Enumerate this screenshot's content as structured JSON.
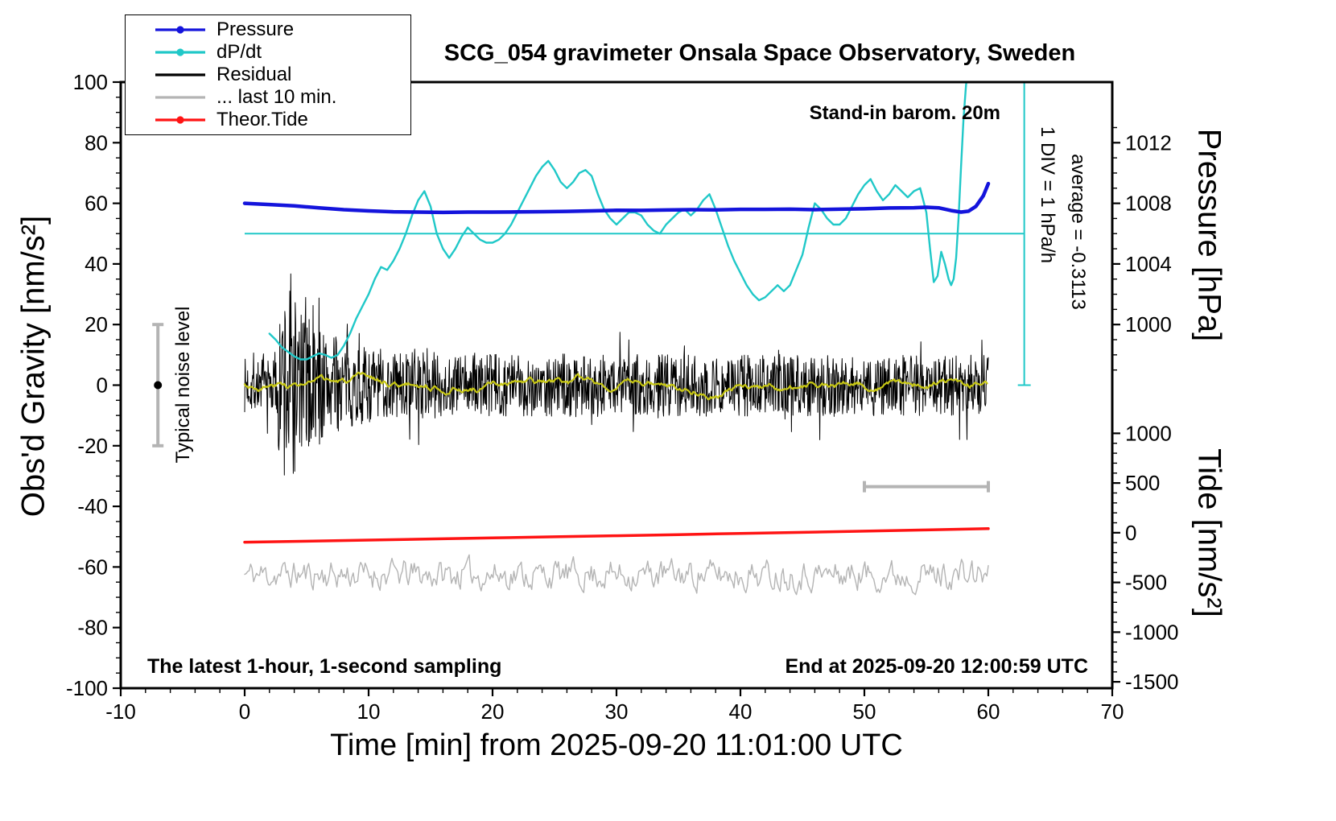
{
  "title": "SCG_054 gravimeter Onsala Space Observatory, Sweden",
  "annotations": {
    "barom": "Stand-in barom. 20m",
    "div_note": "1 DIV = 1 hPa/h",
    "average_note": "average = -0.3113",
    "noise_label": "Typical noise level",
    "sampling_note": "The latest 1-hour, 1-second sampling",
    "end_note": "End at 2025-09-20 12:00:59 UTC"
  },
  "legend": {
    "items": [
      {
        "label": "Pressure",
        "color": "#1414dc",
        "dot": true
      },
      {
        "label": "dP/dt",
        "color": "#20c8c8",
        "dot": true
      },
      {
        "label": "Residual",
        "color": "#000000",
        "dot": false
      },
      {
        "label": "... last 10 min.",
        "color": "#b4b4b4",
        "dot": false
      },
      {
        "label": "Theor.Tide",
        "color": "#ff1414",
        "dot": true
      }
    ]
  },
  "chart_data": {
    "type": "line",
    "axes": {
      "x": {
        "label": "Time [min] from 2025-09-20 11:01:00 UTC",
        "min": -10,
        "max": 70,
        "major_step": 10,
        "minor_step": 2
      },
      "gravity": {
        "label": "Obs'd Gravity [nm/s²]",
        "min": -100,
        "max": 100,
        "major_step": 20,
        "minor_step": 5
      },
      "pressure": {
        "label": "Pressure [hPa]",
        "ticks": [
          1012,
          1008,
          1004,
          1000
        ],
        "minor_step": 1,
        "minor_range": [
          997,
          1013
        ],
        "to_gravity": {
          "offset": 996,
          "scale": 5
        }
      },
      "tide": {
        "label": "Tide [nm/s²]",
        "ticks": [
          1000,
          500,
          0,
          -500,
          -1000,
          -1500
        ],
        "minor_step": 100,
        "minor_range": [
          -1500,
          1000
        ],
        "to_gravity": {
          "offset": -48.7,
          "scale": 0.0328
        }
      }
    },
    "series": [
      {
        "name": "... last 10 min.",
        "axis": "gravity",
        "color": "#b4b4b4",
        "width": 1.4,
        "gen": {
          "kind": "ar1",
          "seed": 11,
          "dx": 0.12,
          "range": [
            0,
            60
          ],
          "center": -62.5,
          "gain": 8.0,
          "smooth": 0.5
        }
      },
      {
        "name": "Residual",
        "axis": "gravity",
        "color": "#000000",
        "width": 1,
        "gen": {
          "kind": "white_env",
          "seed": 7,
          "dx": 0.04,
          "range": [
            0,
            60
          ],
          "center": 0,
          "spike_prob": 0.04,
          "spike_gain": 1.8,
          "clamp": 48,
          "envelope": [
            [
              0,
              9
            ],
            [
              2,
              9
            ],
            [
              2.6,
              13
            ],
            [
              3,
              26
            ],
            [
              3.3,
              40
            ],
            [
              3.6,
              47
            ],
            [
              3.9,
              36
            ],
            [
              4.3,
              27
            ],
            [
              5,
              23
            ],
            [
              6,
              21
            ],
            [
              7,
              17
            ],
            [
              8,
              14
            ],
            [
              10,
              12.5
            ],
            [
              14,
              11
            ],
            [
              20,
              10.5
            ],
            [
              60,
              10
            ]
          ]
        }
      },
      {
        "name": "Residual smoothed",
        "axis": "gravity",
        "color": "#c8c814",
        "width": 2.2,
        "gen": {
          "kind": "ar1",
          "seed": 3,
          "dx": 0.1,
          "range": [
            0,
            60
          ],
          "center": 0,
          "gain": 1.4,
          "smooth": 0.95
        }
      },
      {
        "name": "dP/dt",
        "axis": "gravity",
        "color": "#20c8c8",
        "width": 2.4,
        "points": [
          [
            2,
            17
          ],
          [
            2.5,
            15
          ],
          [
            3,
            12.5
          ],
          [
            3.5,
            11
          ],
          [
            4,
            9.5
          ],
          [
            4.5,
            8.5
          ],
          [
            5,
            8.5
          ],
          [
            5.5,
            9.5
          ],
          [
            6,
            10.5
          ],
          [
            6.5,
            10
          ],
          [
            7,
            9
          ],
          [
            7.5,
            10
          ],
          [
            8,
            13
          ],
          [
            8.5,
            17
          ],
          [
            9,
            22
          ],
          [
            9.5,
            26
          ],
          [
            10,
            30
          ],
          [
            10.5,
            35
          ],
          [
            11,
            39
          ],
          [
            11.5,
            38
          ],
          [
            12,
            41
          ],
          [
            12.5,
            45
          ],
          [
            13,
            50
          ],
          [
            13.5,
            56
          ],
          [
            14,
            61
          ],
          [
            14.5,
            64
          ],
          [
            15,
            59
          ],
          [
            15.5,
            50
          ],
          [
            16,
            45
          ],
          [
            16.5,
            42
          ],
          [
            17,
            45
          ],
          [
            17.5,
            49
          ],
          [
            18,
            52
          ],
          [
            18.5,
            50
          ],
          [
            19,
            48
          ],
          [
            19.5,
            47
          ],
          [
            20,
            47
          ],
          [
            20.5,
            48
          ],
          [
            21,
            50
          ],
          [
            21.5,
            53
          ],
          [
            22,
            57
          ],
          [
            22.5,
            61
          ],
          [
            23,
            65
          ],
          [
            23.5,
            69
          ],
          [
            24,
            72
          ],
          [
            24.5,
            74
          ],
          [
            25,
            71
          ],
          [
            25.5,
            67
          ],
          [
            26,
            65
          ],
          [
            26.5,
            67
          ],
          [
            27,
            70
          ],
          [
            27.5,
            71
          ],
          [
            28,
            69
          ],
          [
            28.5,
            63
          ],
          [
            29,
            58
          ],
          [
            29.5,
            55
          ],
          [
            30,
            53
          ],
          [
            30.5,
            55
          ],
          [
            31,
            57
          ],
          [
            31.5,
            57
          ],
          [
            32,
            56
          ],
          [
            32.5,
            53
          ],
          [
            33,
            51
          ],
          [
            33.5,
            50
          ],
          [
            34,
            53
          ],
          [
            34.5,
            55
          ],
          [
            35,
            57
          ],
          [
            35.5,
            58
          ],
          [
            36,
            56
          ],
          [
            36.5,
            58
          ],
          [
            37,
            61
          ],
          [
            37.5,
            63
          ],
          [
            38,
            58
          ],
          [
            38.5,
            52
          ],
          [
            39,
            46
          ],
          [
            39.5,
            41
          ],
          [
            40,
            37
          ],
          [
            40.5,
            33
          ],
          [
            41,
            30
          ],
          [
            41.5,
            28
          ],
          [
            42,
            29
          ],
          [
            42.5,
            31
          ],
          [
            43,
            33
          ],
          [
            43.5,
            31
          ],
          [
            44,
            33
          ],
          [
            44.5,
            38
          ],
          [
            45,
            43
          ],
          [
            45.5,
            52
          ],
          [
            46,
            60
          ],
          [
            46.5,
            58
          ],
          [
            47,
            55
          ],
          [
            47.5,
            53
          ],
          [
            48,
            53
          ],
          [
            48.5,
            55
          ],
          [
            49,
            59
          ],
          [
            49.5,
            63
          ],
          [
            50,
            66
          ],
          [
            50.5,
            68
          ],
          [
            51,
            64
          ],
          [
            51.5,
            61
          ],
          [
            52,
            63
          ],
          [
            52.5,
            66
          ],
          [
            53,
            64
          ],
          [
            53.5,
            62
          ],
          [
            54,
            64
          ],
          [
            54.5,
            65
          ],
          [
            55,
            57
          ],
          [
            55.3,
            45
          ],
          [
            55.6,
            34
          ],
          [
            55.9,
            36
          ],
          [
            56.2,
            44
          ],
          [
            56.5,
            40
          ],
          [
            56.8,
            35
          ],
          [
            57,
            33
          ],
          [
            57.2,
            35
          ],
          [
            57.4,
            42
          ],
          [
            57.6,
            55
          ],
          [
            57.8,
            72
          ],
          [
            58,
            88
          ],
          [
            58.2,
            99
          ],
          [
            58.35,
            104
          ]
        ]
      },
      {
        "name": "Pressure",
        "axis": "pressure",
        "color": "#1414dc",
        "width": 4.5,
        "points": [
          [
            0,
            1008.0
          ],
          [
            2,
            1007.92
          ],
          [
            4,
            1007.83
          ],
          [
            6,
            1007.7
          ],
          [
            8,
            1007.58
          ],
          [
            10,
            1007.5
          ],
          [
            12,
            1007.44
          ],
          [
            14,
            1007.42
          ],
          [
            16,
            1007.4
          ],
          [
            18,
            1007.42
          ],
          [
            20,
            1007.42
          ],
          [
            22,
            1007.43
          ],
          [
            24,
            1007.45
          ],
          [
            26,
            1007.47
          ],
          [
            28,
            1007.5
          ],
          [
            30,
            1007.54
          ],
          [
            32,
            1007.53
          ],
          [
            34,
            1007.56
          ],
          [
            36,
            1007.58
          ],
          [
            38,
            1007.57
          ],
          [
            40,
            1007.6
          ],
          [
            42,
            1007.6
          ],
          [
            44,
            1007.61
          ],
          [
            46,
            1007.58
          ],
          [
            48,
            1007.61
          ],
          [
            50,
            1007.64
          ],
          [
            52,
            1007.69
          ],
          [
            54,
            1007.71
          ],
          [
            55,
            1007.74
          ],
          [
            56,
            1007.7
          ],
          [
            57,
            1007.52
          ],
          [
            57.8,
            1007.42
          ],
          [
            58.4,
            1007.48
          ],
          [
            59,
            1007.8
          ],
          [
            59.6,
            1008.5
          ],
          [
            60,
            1009.3
          ]
        ]
      },
      {
        "name": "Theor.Tide",
        "axis": "tide",
        "color": "#ff1414",
        "width": 3.5,
        "points": [
          [
            0,
            -95
          ],
          [
            5,
            -85
          ],
          [
            10,
            -74
          ],
          [
            15,
            -63
          ],
          [
            20,
            -52
          ],
          [
            25,
            -41
          ],
          [
            30,
            -30
          ],
          [
            35,
            -19
          ],
          [
            40,
            -7
          ],
          [
            45,
            4
          ],
          [
            50,
            16
          ],
          [
            55,
            28
          ],
          [
            60,
            41
          ]
        ]
      }
    ],
    "markers": {
      "dpdt_zero_line": {
        "value": 50,
        "x_from": 0,
        "x_to": 62.9,
        "color": "#20c8c8",
        "width": 2
      },
      "dpdt_scale_bar": {
        "x": 62.9,
        "g_from": 0,
        "g_to": 100,
        "cap": 8,
        "color": "#20c8c8",
        "width": 2
      },
      "window_bar": {
        "g": -33.5,
        "x_from": 50,
        "x_to": 60,
        "cap": 7,
        "color": "#b4b4b4",
        "width": 4
      },
      "noise_bar": {
        "x": -7,
        "g_from": -20,
        "g_to": 20,
        "cap": 7,
        "color": "#b4b4b4",
        "width": 4,
        "dot_g": 0,
        "dot_color": "#000000",
        "dot_r": 5
      }
    }
  }
}
